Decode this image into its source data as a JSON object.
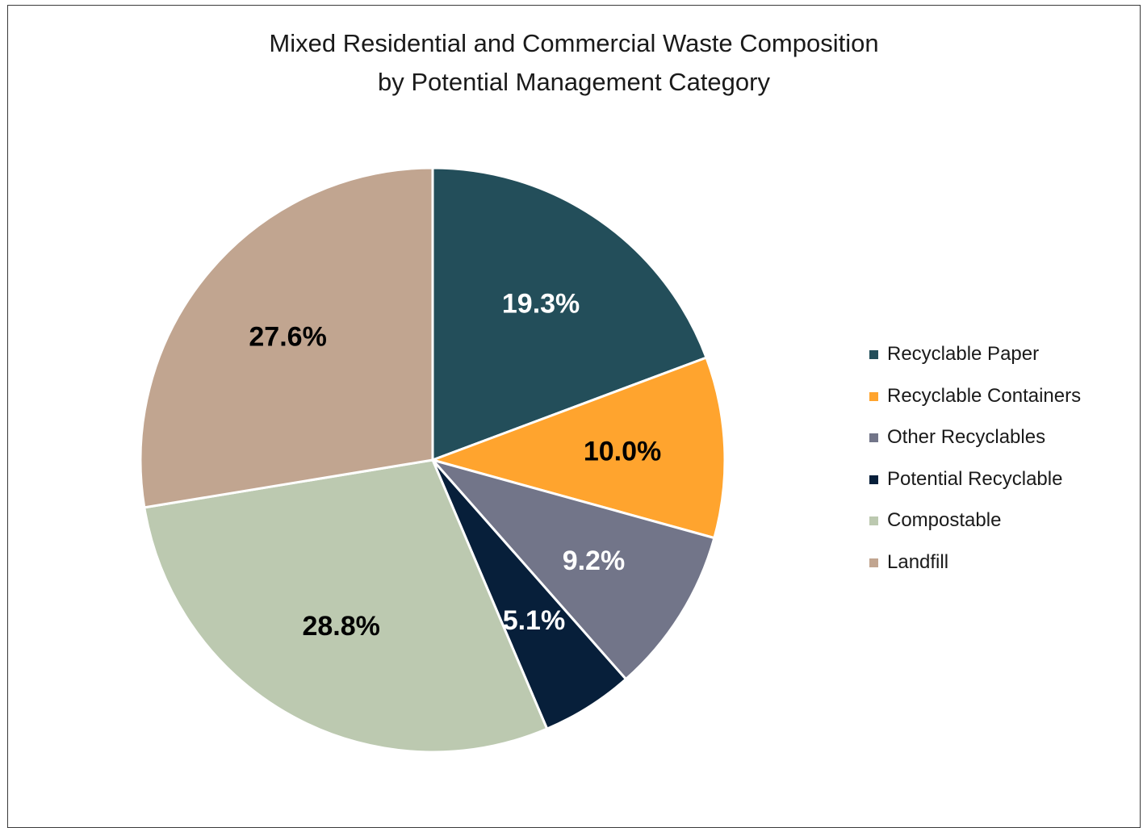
{
  "chart_data": {
    "type": "pie",
    "title": [
      "Mixed Residential and Commercial Waste Composition",
      "by Potential Management Category"
    ],
    "legend_position": "right",
    "start_angle_deg": 0,
    "direction": "clockwise",
    "slices": [
      {
        "label": "Recyclable Paper",
        "value": 19.3,
        "display": "19.3%",
        "color": "#234E5A",
        "label_color": "#FFFFFF"
      },
      {
        "label": "Recyclable Containers",
        "value": 10.0,
        "display": "10.0%",
        "color": "#FFA42E",
        "label_color": "#000000"
      },
      {
        "label": "Other Recyclables",
        "value": 9.2,
        "display": "9.2%",
        "color": "#727589",
        "label_color": "#FFFFFF"
      },
      {
        "label": "Potential Recyclable",
        "value": 5.1,
        "display": "5.1%",
        "color": "#071F3A",
        "label_color": "#FFFFFF"
      },
      {
        "label": "Compostable",
        "value": 28.8,
        "display": "28.8%",
        "color": "#BCC9B0",
        "label_color": "#000000"
      },
      {
        "label": "Landfill",
        "value": 27.6,
        "display": "27.6%",
        "color": "#C1A590",
        "label_color": "#000000"
      }
    ]
  }
}
